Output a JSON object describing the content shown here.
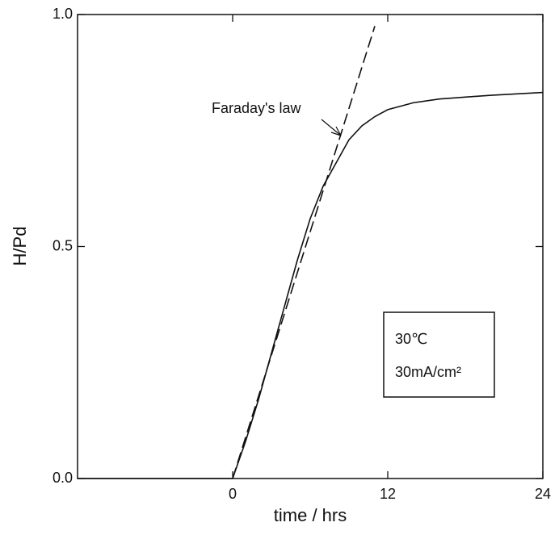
{
  "chart_data": {
    "type": "line",
    "xlabel": "time / hrs",
    "ylabel": "H/Pd",
    "xlim": [
      -12,
      24
    ],
    "xticks": [
      0,
      12,
      24
    ],
    "ylim": [
      0,
      1
    ],
    "yticks": [
      {
        "value": 0,
        "label": "0.0"
      },
      0.5,
      {
        "value": 1,
        "label": "1.0"
      }
    ],
    "series": [
      {
        "color": "#111111",
        "style": "solid",
        "x": [
          -12,
          0,
          1,
          2,
          3,
          4,
          5,
          6,
          7,
          8,
          9,
          10,
          11,
          12,
          14,
          16,
          18,
          20,
          22,
          24
        ],
        "values": [
          0,
          0,
          0.08,
          0.17,
          0.27,
          0.37,
          0.47,
          0.56,
          0.63,
          0.68,
          0.73,
          0.76,
          0.78,
          0.795,
          0.81,
          0.818,
          0.822,
          0.826,
          0.829,
          0.832
        ]
      },
      {
        "color": "#111111",
        "style": "dashed",
        "x": [
          0,
          11
        ],
        "values": [
          0,
          0.975
        ]
      }
    ],
    "annotations": [
      "Faraday's law",
      "30℃",
      "30mA/cm²"
    ]
  }
}
